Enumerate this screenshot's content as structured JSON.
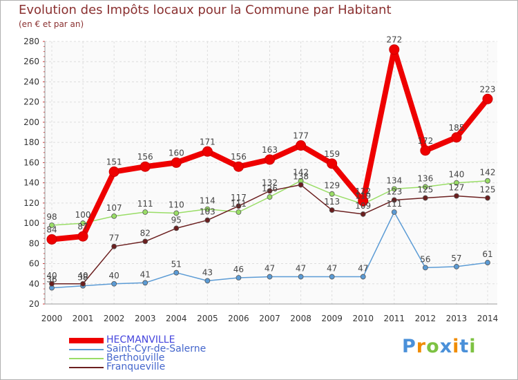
{
  "chart_data": {
    "type": "line",
    "title": "Evolution des Impôts locaux pour la Commune par Habitant",
    "subtitle": "(en € et par an)",
    "xlabel": "",
    "ylabel": "",
    "ylim": [
      20,
      280
    ],
    "yticks": [
      20,
      40,
      60,
      80,
      100,
      120,
      140,
      160,
      180,
      200,
      220,
      240,
      260,
      280
    ],
    "grid": true,
    "categories": [
      "2000",
      "2001",
      "2002",
      "2003",
      "2004",
      "2005",
      "2006",
      "2007",
      "2008",
      "2009",
      "2010",
      "2011",
      "2012",
      "2013",
      "2014"
    ],
    "series": [
      {
        "name": "HECMANVILLE",
        "color": "#ee0000",
        "values": [
          84,
          87,
          151,
          156,
          160,
          171,
          156,
          163,
          177,
          159,
          122,
          272,
          172,
          185,
          223
        ]
      },
      {
        "name": "Saint-Cyr-de-Salerne",
        "color": "#5b9bd5",
        "values": [
          36,
          38,
          40,
          41,
          51,
          43,
          46,
          47,
          47,
          47,
          47,
          111,
          56,
          57,
          61
        ]
      },
      {
        "name": "Berthouville",
        "color": "#99dd66",
        "values": [
          98,
          100,
          107,
          111,
          110,
          114,
          111,
          126,
          142,
          129,
          119,
          134,
          136,
          140,
          142
        ]
      },
      {
        "name": "Franqueville",
        "color": "#6b1f1f",
        "values": [
          40,
          40,
          77,
          82,
          95,
          103,
          117,
          132,
          138,
          113,
          109,
          123,
          125,
          127,
          125
        ]
      }
    ],
    "point_labels": [
      [
        "84",
        "87",
        "151",
        "156",
        "160",
        "171",
        "156",
        "163",
        "177",
        "159",
        "122",
        "272",
        "172",
        "185",
        "223"
      ],
      [
        "36",
        "38",
        "40",
        "41",
        "51",
        "43",
        "46",
        "47",
        "47",
        "47",
        "47",
        "111",
        "56",
        "57",
        "61"
      ],
      [
        "98",
        "100",
        "107",
        "111",
        "110",
        "114",
        "111",
        "126",
        "142",
        "129",
        "119",
        "134",
        "136",
        "140",
        "142"
      ],
      [
        "40",
        "40",
        "77",
        "82",
        "95",
        "103",
        "117",
        "132",
        "138",
        "113",
        "109",
        "123",
        "125",
        "127",
        "125"
      ]
    ],
    "legend_position": "bottom-left"
  },
  "logo": {
    "letters": [
      "P",
      "r",
      "o",
      "x",
      "i",
      "t",
      "i"
    ],
    "colors": [
      "#4a90d9",
      "#f08c00",
      "#7dc242",
      "#4a90d9",
      "#f08c00",
      "#4a90d9",
      "#7dc242"
    ]
  }
}
